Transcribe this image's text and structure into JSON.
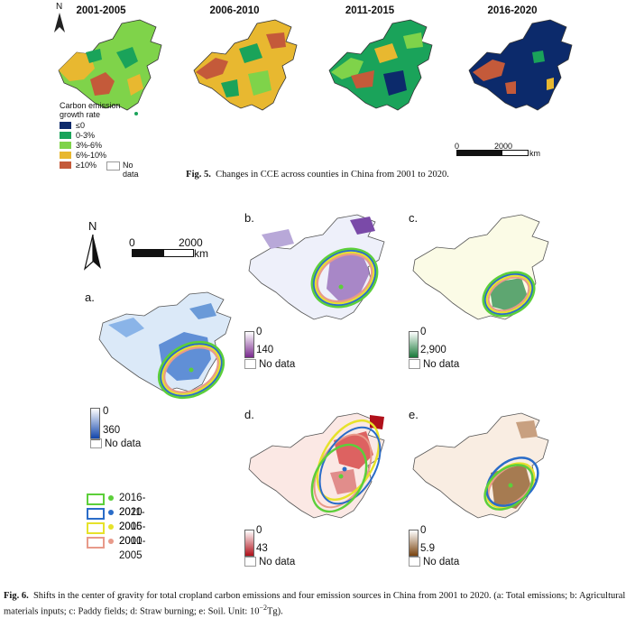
{
  "fig5": {
    "periods": [
      "2001-2005",
      "2006-2010",
      "2011-2015",
      "2016-2020"
    ],
    "north_label": "N",
    "legend_title_1": "Carbon emission",
    "legend_title_2": "growth rate",
    "legend": [
      {
        "label": "≤0",
        "color": "#0c2a6b"
      },
      {
        "label": "0-3%",
        "color": "#1aa35a"
      },
      {
        "label": "3%-6%",
        "color": "#7fd34a"
      },
      {
        "label": "6%-10%",
        "color": "#e8b830"
      },
      {
        "label": "≥10%",
        "color": "#c45a3a"
      }
    ],
    "nodata_label": "No data",
    "scale_0": "0",
    "scale_max": "2000",
    "scale_unit": "km",
    "caption_label": "Fig. 5.",
    "caption_text": "Changes in CCE across counties in China from 2001 to 2020."
  },
  "fig6": {
    "north_label": "N",
    "scale_0": "0",
    "scale_max": "2000",
    "scale_unit": "km",
    "panels": [
      {
        "letter": "a.",
        "min": "0",
        "max": "360",
        "color": "#0a3fa8"
      },
      {
        "letter": "b.",
        "min": "0",
        "max": "140",
        "color": "#7a2a8e"
      },
      {
        "letter": "c.",
        "min": "0",
        "max": "2,900",
        "color": "#1a7a3a"
      },
      {
        "letter": "d.",
        "min": "0",
        "max": "43",
        "color": "#b0101a"
      },
      {
        "letter": "e.",
        "min": "0",
        "max": "5.9",
        "color": "#7a4410"
      }
    ],
    "nodata_label": "No data",
    "ellipse_legend": [
      {
        "label": "2016-2020",
        "color": "#5ccf3a"
      },
      {
        "label": "2011-2015",
        "color": "#2a6cc8"
      },
      {
        "label": "2006-2010",
        "color": "#e6e22a"
      },
      {
        "label": "2001-2005",
        "color": "#e89a8a"
      }
    ],
    "caption_label": "Fig. 6.",
    "caption_text": "Shifts in the center of gravity for total cropland carbon emissions and four emission sources in China from 2001 to 2020. (a: Total emissions; b: Agricultural materials inputs; c: Paddy fields; d: Straw burning; e: Soil. Unit: 10",
    "caption_sup": "−2",
    "caption_end": "Tg)."
  }
}
